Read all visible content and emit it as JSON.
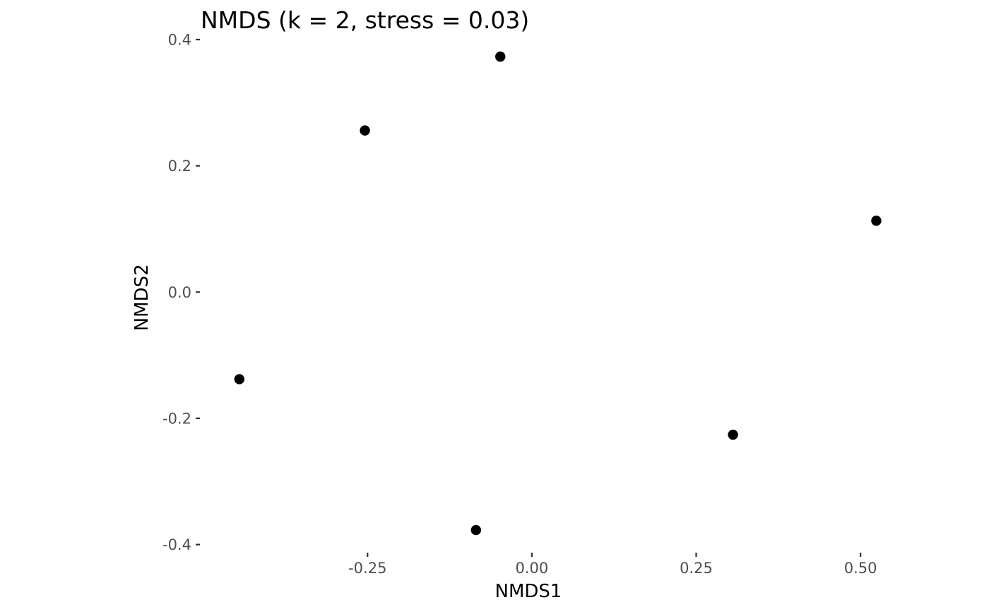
{
  "chart_data": {
    "type": "scatter",
    "title": "NMDS (k = 2, stress = 0.03)",
    "xlabel": "NMDS1",
    "ylabel": "NMDS2",
    "xlim": [
      -0.505,
      0.66
    ],
    "ylim": [
      -0.415,
      0.4
    ],
    "x_ticks": [
      -0.25,
      0.0,
      0.25,
      0.5
    ],
    "x_tick_labels": [
      "-0.25",
      "0.00",
      "0.25",
      "0.50"
    ],
    "y_ticks": [
      -0.4,
      -0.2,
      0.0,
      0.2,
      0.4
    ],
    "y_tick_labels": [
      "-0.4",
      "-0.2",
      "0.0",
      "0.2",
      "0.4"
    ],
    "grid": false,
    "legend": "none",
    "point_color": "#000000",
    "points": [
      {
        "x": -0.445,
        "y": -0.138
      },
      {
        "x": -0.254,
        "y": 0.256
      },
      {
        "x": -0.048,
        "y": 0.373
      },
      {
        "x": -0.085,
        "y": -0.377
      },
      {
        "x": 0.306,
        "y": -0.226
      },
      {
        "x": 0.524,
        "y": 0.113
      }
    ]
  }
}
